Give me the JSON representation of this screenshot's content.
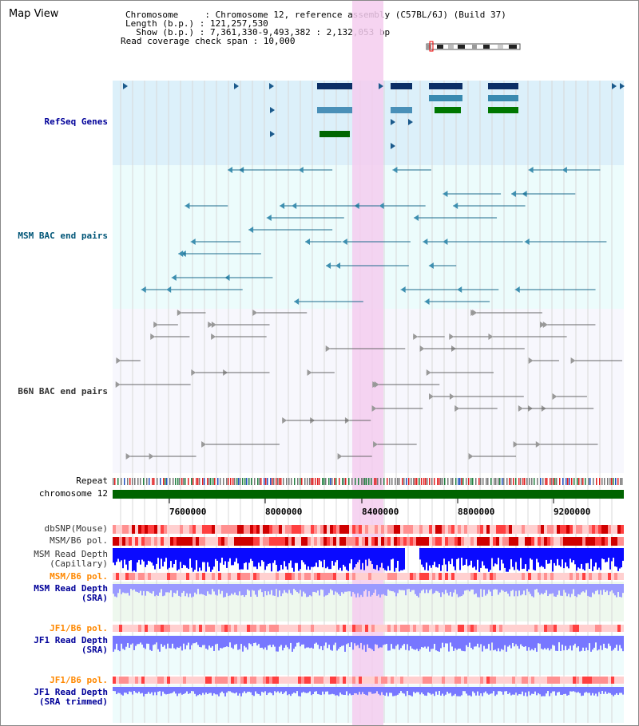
{
  "view_title": "Map View",
  "info": {
    "line1": "Chromosome     : Chromosome 12, reference assembly (C57BL/6J) (Build 37)",
    "line2": "Length (b.p.) : 121,257,530",
    "line3": "  Show (b.p.) : 7,361,330-9,493,382 : 2,132,053 bp",
    "line4": "Read coverage check span : 10,000"
  },
  "tracks": {
    "refseq": "RefSeq Genes",
    "msm_bac": "MSM BAC end pairs",
    "b6n_bac": "B6N BAC end pairs",
    "repeat": "Repeat",
    "chromosome": "chromosome 12",
    "dbsnp": "dbSNP(Mouse)",
    "msm_b6_pol": "MSM/B6 pol.",
    "msm_depth_cap": "MSM Read Depth\n(Capillary)",
    "msm_b6_pol2": "MSM/B6 pol.",
    "msm_depth_sra": "MSM Read Depth\n(SRA)",
    "jf1_b6_pol": "JF1/B6 pol.",
    "jf1_depth_sra": "JF1 Read Depth\n(SRA)",
    "jf1_b6_pol2": "JF1/B6 pol.",
    "jf1_depth_trim": "JF1 Read Depth\n(SRA trimmed)"
  },
  "axis_ticks": [
    "7600000",
    "8000000",
    "8400000",
    "8800000",
    "9200000"
  ],
  "colors": {
    "refseq_bg": "#dcf0fa",
    "bac_bg": "#ecfcfc",
    "highlight": "#f5cdef",
    "chromosome_bar": "#006400",
    "refseq_label": "#000099",
    "msm_label": "#005577",
    "b6n_label": "#333333",
    "pol_label": "#ff8800",
    "depth_label": "#000099",
    "depth_blue": "#0a0aff",
    "depth_light": "#7777ff"
  }
}
